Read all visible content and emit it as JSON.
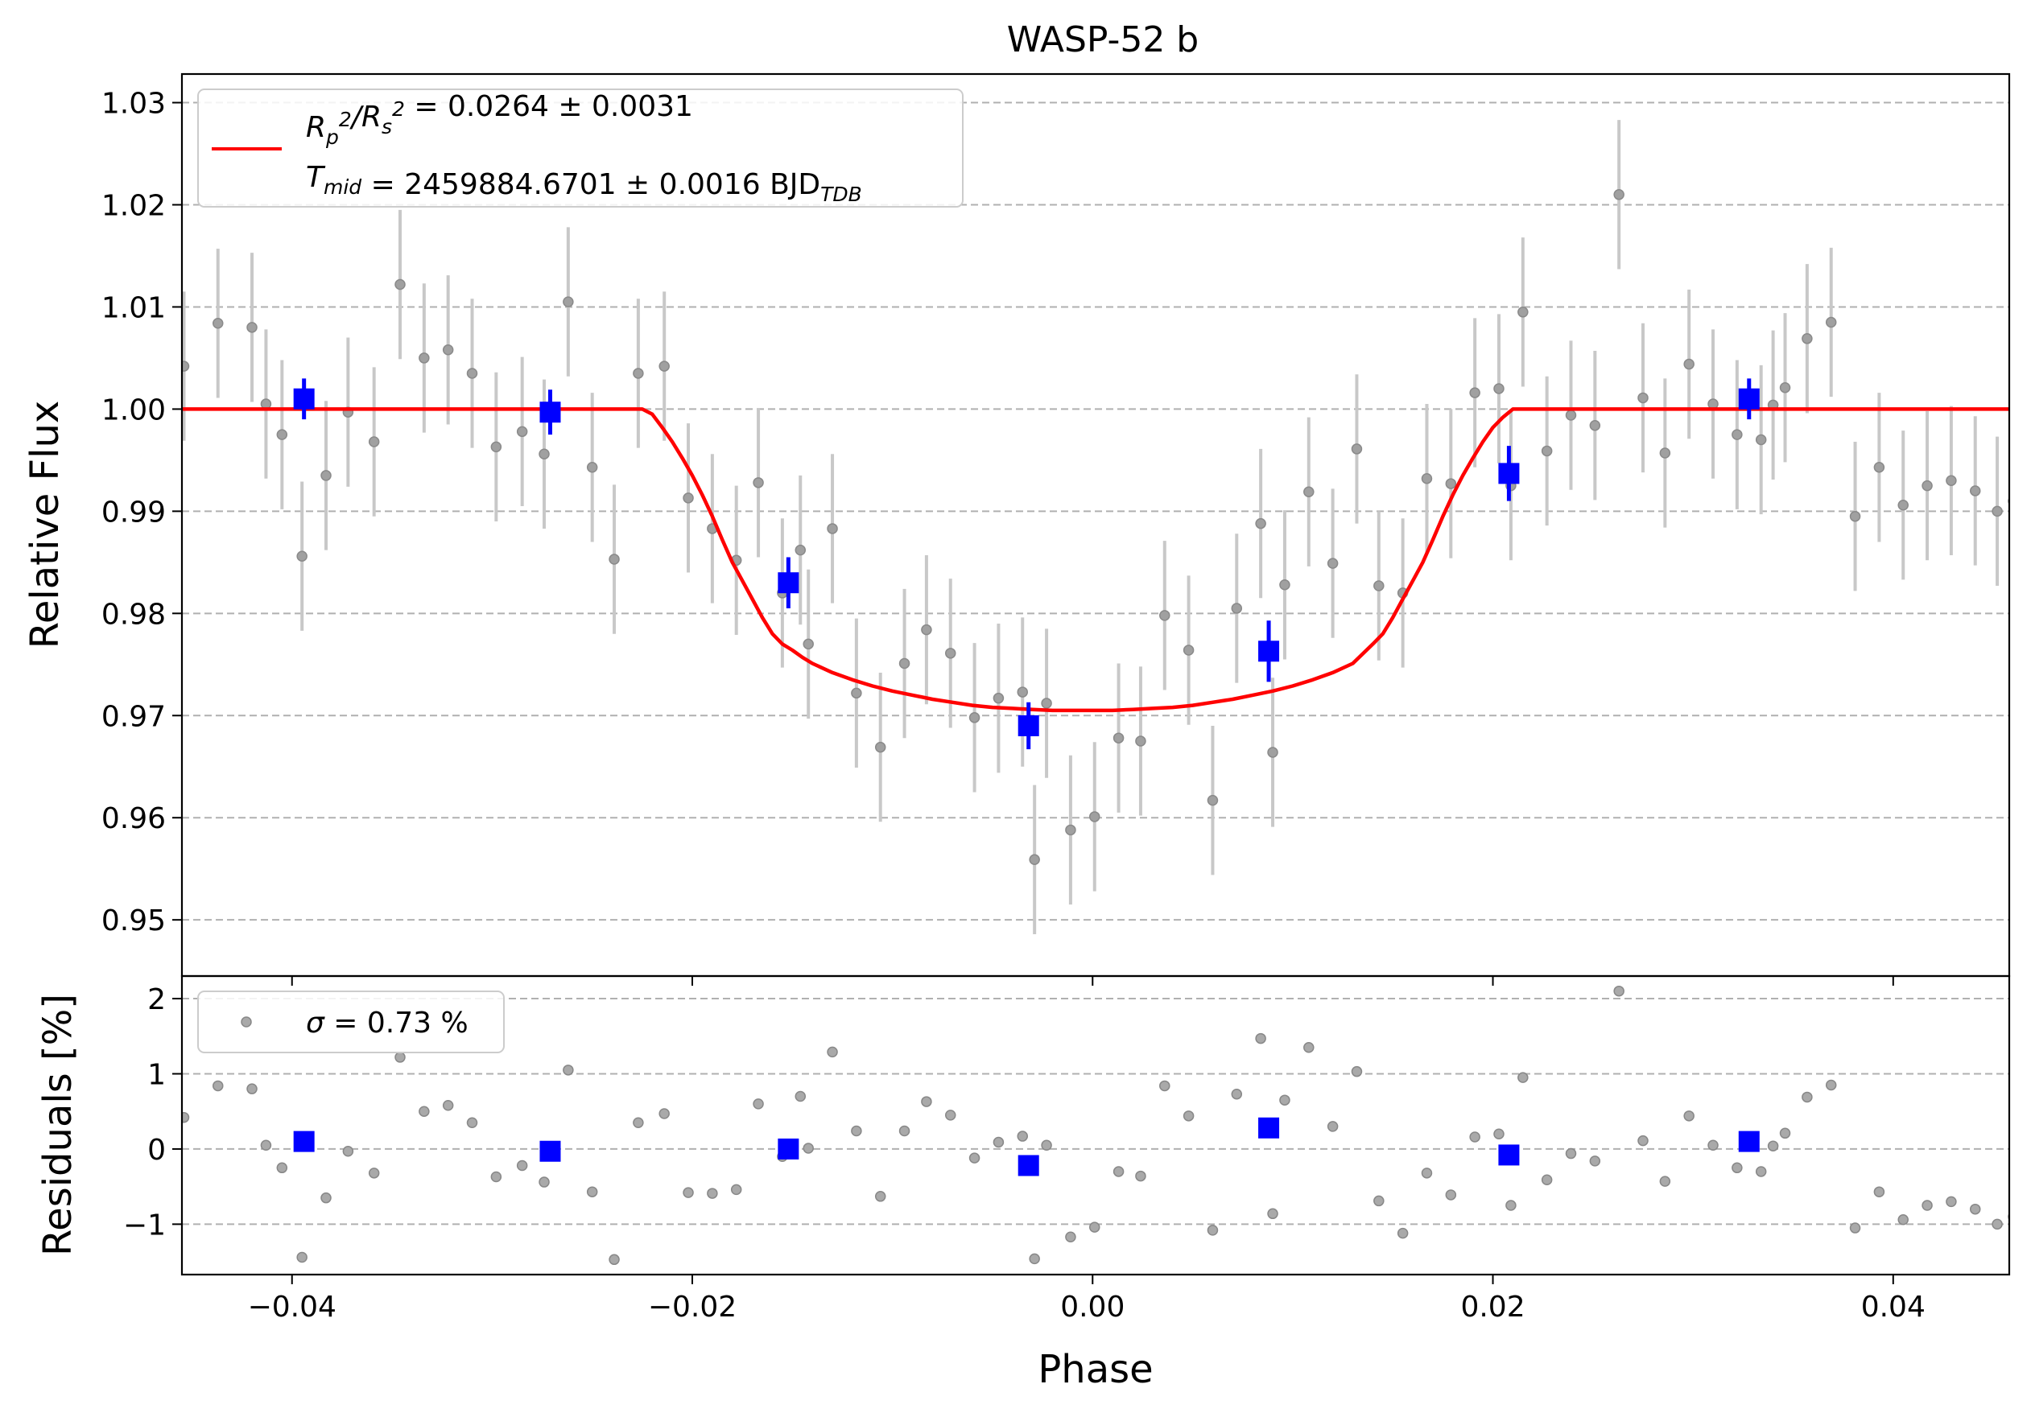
{
  "chart_data": [
    {
      "type": "scatter",
      "panel": "flux",
      "title": "WASP-52 b",
      "xlabel": "",
      "ylabel": "Relative Flux",
      "xlim": [
        -0.0455,
        0.0458
      ],
      "ylim": [
        0.9445,
        1.0328
      ],
      "grid": "horizontal dashed",
      "legend": "top-left",
      "xticks": [
        "−0.04",
        "−0.02",
        "0.00",
        "0.02",
        "0.04"
      ],
      "xtick_values": [
        -0.04,
        -0.02,
        0.0,
        0.02,
        0.04
      ],
      "yticks": [
        "0.95",
        "0.96",
        "0.97",
        "0.98",
        "0.99",
        "1.00",
        "1.01",
        "1.02",
        "1.03"
      ],
      "ytick_values": [
        0.95,
        0.96,
        0.97,
        0.98,
        0.99,
        1.0,
        1.01,
        1.02,
        1.03
      ],
      "legend_entries": [
        {
          "math": [
            {
              "t": "R"
            },
            {
              "t": "p",
              "sub": true
            },
            {
              "t": "2",
              "sup": true
            },
            {
              "t": "/"
            },
            {
              "t": "R"
            },
            {
              "t": "s",
              "sub": true
            },
            {
              "t": "2",
              "sup": true
            }
          ],
          "rest": " = 0.0264 ± 0.0031",
          "color": "#ff0000"
        },
        {
          "math": [
            {
              "t": "T"
            },
            {
              "t": "mid",
              "sub": true
            }
          ],
          "rest": " = 2459884.6701 ± 0.0016 BJD",
          "suffix_sub": "TDB"
        }
      ],
      "series": [
        {
          "kind": "raw",
          "color": "#808080",
          "err": 0.0073,
          "x": [
            -0.0454,
            -0.0437,
            -0.042,
            -0.0413,
            -0.0405,
            -0.0395,
            -0.0383,
            -0.0372,
            -0.0359,
            -0.0346,
            -0.0334,
            -0.0322,
            -0.031,
            -0.0298,
            -0.0285,
            -0.0274,
            -0.0262,
            -0.025,
            -0.0239,
            -0.0227,
            -0.0214,
            -0.0202,
            -0.019,
            -0.0178,
            -0.0167,
            -0.0155,
            -0.0146,
            -0.0142,
            -0.013,
            -0.0118,
            -0.0106,
            -0.0094,
            -0.0083,
            -0.0071,
            -0.0059,
            -0.0047,
            -0.0035,
            -0.0029,
            -0.0023,
            -0.0011,
            0.0001,
            0.0013,
            0.0024,
            0.0036,
            0.0048,
            0.006,
            0.0072,
            0.0084,
            0.009,
            0.0096,
            0.0108,
            0.012,
            0.0132,
            0.0143,
            0.0155,
            0.0167,
            0.0179,
            0.0191,
            0.0203,
            0.0209,
            0.0215,
            0.0227,
            0.0239,
            0.0251,
            0.0263,
            0.0275,
            0.0286,
            0.0298,
            0.031,
            0.0322,
            0.0334,
            0.034,
            0.0346,
            0.0357,
            0.0369,
            0.0381,
            0.0393,
            0.0405,
            0.0417,
            0.0429,
            0.0441,
            0.0452,
            0.046
          ],
          "y": [
            1.0042,
            1.0084,
            1.008,
            1.0005,
            0.9975,
            0.9856,
            0.9935,
            0.9997,
            0.9968,
            1.0122,
            1.005,
            1.0058,
            1.0035,
            0.9963,
            0.9978,
            0.9956,
            1.0105,
            0.9943,
            0.9853,
            1.0035,
            1.0042,
            0.9913,
            0.9883,
            0.9852,
            0.9928,
            0.982,
            0.9862,
            0.977,
            0.9883,
            0.9722,
            0.9669,
            0.9751,
            0.9784,
            0.9761,
            0.9698,
            0.9717,
            0.9723,
            0.9559,
            0.9712,
            0.9588,
            0.9601,
            0.9678,
            0.9675,
            0.9798,
            0.9764,
            0.9617,
            0.9805,
            0.9888,
            0.9664,
            0.9828,
            0.9919,
            0.9849,
            0.9961,
            0.9827,
            0.982,
            0.9932,
            0.9927,
            1.0016,
            1.002,
            0.9925,
            1.0095,
            0.9959,
            0.9994,
            0.9984,
            1.021,
            1.0011,
            0.9957,
            1.0044,
            1.0005,
            0.9975,
            0.997,
            1.0004,
            1.0021,
            1.0069,
            1.0085,
            0.9895,
            0.9943,
            0.9906,
            0.9925,
            0.993,
            0.992,
            0.99,
            0.991
          ]
        },
        {
          "kind": "binned",
          "color": "#0000ff",
          "x": [
            -0.0394,
            -0.0271,
            -0.0152,
            -0.0032,
            0.0088,
            0.0208,
            0.0328
          ],
          "y": [
            1.001,
            0.9997,
            0.983,
            0.969,
            0.9763,
            0.9937,
            1.001
          ],
          "err": [
            0.002,
            0.0022,
            0.0025,
            0.0023,
            0.003,
            0.0027,
            0.002
          ]
        },
        {
          "kind": "model",
          "name": "R_p^2/R_s^2 = 0.0264 ± 0.0031",
          "color": "#ff0000",
          "x": [
            -0.0455,
            -0.0225,
            -0.022,
            -0.0215,
            -0.021,
            -0.0205,
            -0.02,
            -0.0195,
            -0.019,
            -0.0185,
            -0.018,
            -0.0175,
            -0.017,
            -0.0165,
            -0.016,
            -0.0155,
            -0.015,
            -0.0145,
            -0.014,
            -0.013,
            -0.012,
            -0.011,
            -0.01,
            -0.009,
            -0.008,
            -0.007,
            -0.006,
            -0.005,
            -0.004,
            -0.003,
            -0.002,
            -0.001,
            0.0,
            0.001,
            0.002,
            0.003,
            0.004,
            0.005,
            0.006,
            0.007,
            0.008,
            0.009,
            0.01,
            0.011,
            0.012,
            0.013,
            0.014,
            0.0145,
            0.015,
            0.0155,
            0.016,
            0.0165,
            0.017,
            0.0175,
            0.018,
            0.0185,
            0.019,
            0.0195,
            0.02,
            0.0205,
            0.021,
            0.0215,
            0.022,
            0.0225,
            0.0458
          ],
          "y": [
            1.0,
            1.0,
            0.9995,
            0.9982,
            0.9968,
            0.9952,
            0.9935,
            0.9916,
            0.9895,
            0.9872,
            0.985,
            0.9832,
            0.9814,
            0.9796,
            0.978,
            0.977,
            0.9764,
            0.9757,
            0.9751,
            0.9742,
            0.9735,
            0.9729,
            0.9724,
            0.972,
            0.9716,
            0.9713,
            0.971,
            0.9708,
            0.9707,
            0.9706,
            0.9705,
            0.9705,
            0.9705,
            0.9705,
            0.9706,
            0.9707,
            0.9708,
            0.971,
            0.9713,
            0.9716,
            0.972,
            0.9724,
            0.9729,
            0.9735,
            0.9742,
            0.9751,
            0.977,
            0.978,
            0.9796,
            0.9814,
            0.9832,
            0.985,
            0.9872,
            0.9895,
            0.9916,
            0.9935,
            0.9952,
            0.9968,
            0.9982,
            0.9992,
            1.0,
            1.0,
            1.0,
            1.0,
            1.0
          ]
        }
      ]
    },
    {
      "type": "scatter",
      "panel": "residuals",
      "xlabel": "Phase",
      "ylabel": "Residuals [%]",
      "xlim": [
        -0.0455,
        0.0458
      ],
      "ylim": [
        -1.67,
        2.3
      ],
      "grid": "horizontal dashed",
      "legend": "top-left",
      "xticks": [
        "−0.04",
        "−0.02",
        "0.00",
        "0.02",
        "0.04"
      ],
      "xtick_values": [
        -0.04,
        -0.02,
        0.0,
        0.02,
        0.04
      ],
      "yticks": [
        "−1",
        "0",
        "1",
        "2"
      ],
      "ytick_values": [
        -1,
        0,
        1,
        2
      ],
      "legend_entries": [
        {
          "math": [
            {
              "t": "σ"
            }
          ],
          "rest": " = 0.73 %",
          "color": "#808080"
        }
      ],
      "series": [
        {
          "kind": "raw",
          "color": "#808080",
          "x": [
            -0.0454,
            -0.0437,
            -0.042,
            -0.0413,
            -0.0405,
            -0.0395,
            -0.0383,
            -0.0372,
            -0.0359,
            -0.0346,
            -0.0334,
            -0.0322,
            -0.031,
            -0.0298,
            -0.0285,
            -0.0274,
            -0.0262,
            -0.025,
            -0.0239,
            -0.0227,
            -0.0214,
            -0.0202,
            -0.019,
            -0.0178,
            -0.0167,
            -0.0155,
            -0.0146,
            -0.0142,
            -0.013,
            -0.0118,
            -0.0106,
            -0.0094,
            -0.0083,
            -0.0071,
            -0.0059,
            -0.0047,
            -0.0035,
            -0.0029,
            -0.0023,
            -0.0011,
            0.0001,
            0.0013,
            0.0024,
            0.0036,
            0.0048,
            0.006,
            0.0072,
            0.0084,
            0.009,
            0.0096,
            0.0108,
            0.012,
            0.0132,
            0.0143,
            0.0155,
            0.0167,
            0.0179,
            0.0191,
            0.0203,
            0.0209,
            0.0215,
            0.0227,
            0.0239,
            0.0251,
            0.0263,
            0.0275,
            0.0286,
            0.0298,
            0.031,
            0.0322,
            0.0334,
            0.034,
            0.0346,
            0.0357,
            0.0369,
            0.0381,
            0.0393,
            0.0405,
            0.0417,
            0.0429,
            0.0441,
            0.0452,
            0.046
          ],
          "y": [
            0.42,
            0.84,
            0.8,
            0.05,
            -0.25,
            -1.44,
            -0.65,
            -0.03,
            -0.32,
            1.22,
            0.5,
            0.58,
            0.35,
            -0.37,
            -0.22,
            -0.44,
            1.05,
            -0.57,
            -1.47,
            0.35,
            0.47,
            -0.58,
            -0.59,
            -0.54,
            0.6,
            -0.1,
            0.7,
            0.01,
            1.29,
            0.24,
            -0.63,
            0.24,
            0.63,
            0.45,
            -0.12,
            0.09,
            0.17,
            -1.46,
            0.05,
            -1.17,
            -1.04,
            -0.3,
            -0.36,
            0.84,
            0.44,
            -1.08,
            0.73,
            1.47,
            -0.86,
            0.65,
            1.35,
            0.3,
            1.03,
            -0.69,
            -1.12,
            -0.32,
            -0.61,
            0.16,
            0.2,
            -0.75,
            0.95,
            -0.41,
            -0.06,
            -0.16,
            2.1,
            0.11,
            -0.43,
            0.44,
            0.05,
            -0.25,
            -0.3,
            0.04,
            0.21,
            0.69,
            0.85,
            -1.05,
            -0.57,
            -0.94,
            -0.75,
            -0.7,
            -0.8,
            -1.0,
            -0.9
          ]
        },
        {
          "kind": "binned",
          "color": "#0000ff",
          "x": [
            -0.0394,
            -0.0271,
            -0.0152,
            -0.0032,
            0.0088,
            0.0208,
            0.0328
          ],
          "y": [
            0.1,
            -0.03,
            0.0,
            -0.22,
            0.28,
            -0.08,
            0.1
          ]
        }
      ]
    }
  ]
}
